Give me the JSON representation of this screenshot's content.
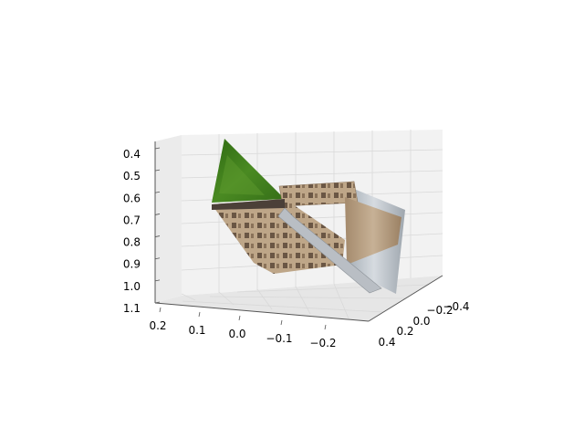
{
  "chart_data": {
    "type": "surface3d",
    "title": "",
    "xlabel": "",
    "ylabel": "",
    "zlabel": "",
    "x_ticks": [
      "0.2",
      "0.1",
      "0.0",
      "−0.1",
      "−0.2"
    ],
    "y_ticks": [
      "0.4",
      "0.2",
      "0.0",
      "−0.2",
      "−0.4"
    ],
    "z_ticks": [
      "0.4",
      "0.5",
      "0.6",
      "0.7",
      "0.8",
      "0.9",
      "1.0",
      "1.1"
    ],
    "xlim": [
      -0.25,
      0.2
    ],
    "ylim": [
      -0.45,
      0.45
    ],
    "zlim": [
      0.37,
      1.12
    ],
    "z_inverted": true,
    "grid": true,
    "surfaces": [
      {
        "texture": "green foliage"
      },
      {
        "texture": "building facade"
      },
      {
        "texture": "building facade"
      },
      {
        "texture": "grey sky"
      }
    ],
    "colors": {
      "pane": "#f2f2f2",
      "grid": "#d9d9d9",
      "axis": "#555555",
      "green": "#3f7a1b",
      "facade": "#b49a7c",
      "window": "#6a5644",
      "sky": "#c3cbd2"
    }
  }
}
